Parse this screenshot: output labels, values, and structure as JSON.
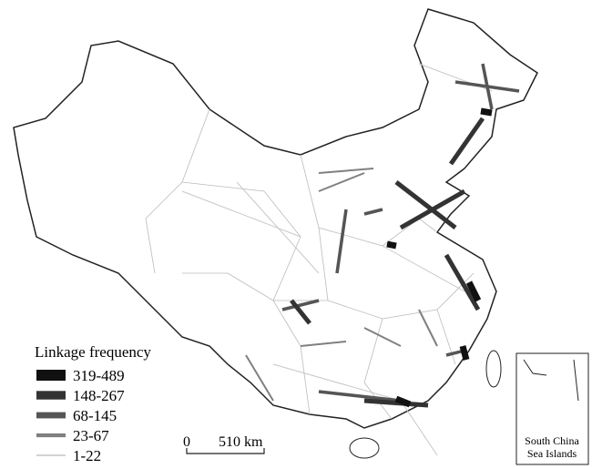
{
  "legend": {
    "title": "Linkage frequency",
    "items": [
      {
        "label": "319-489",
        "color": "#111111"
      },
      {
        "label": "148-267",
        "color": "#333333"
      },
      {
        "label": "68-145",
        "color": "#555555"
      },
      {
        "label": "23-67",
        "color": "#808080"
      },
      {
        "label": "1-22",
        "color": "#c8c8c8"
      }
    ]
  },
  "scale_bar": {
    "start": "0",
    "end": "510 km"
  },
  "inset": {
    "label_lines": [
      "South China",
      "Sea Islands"
    ]
  }
}
